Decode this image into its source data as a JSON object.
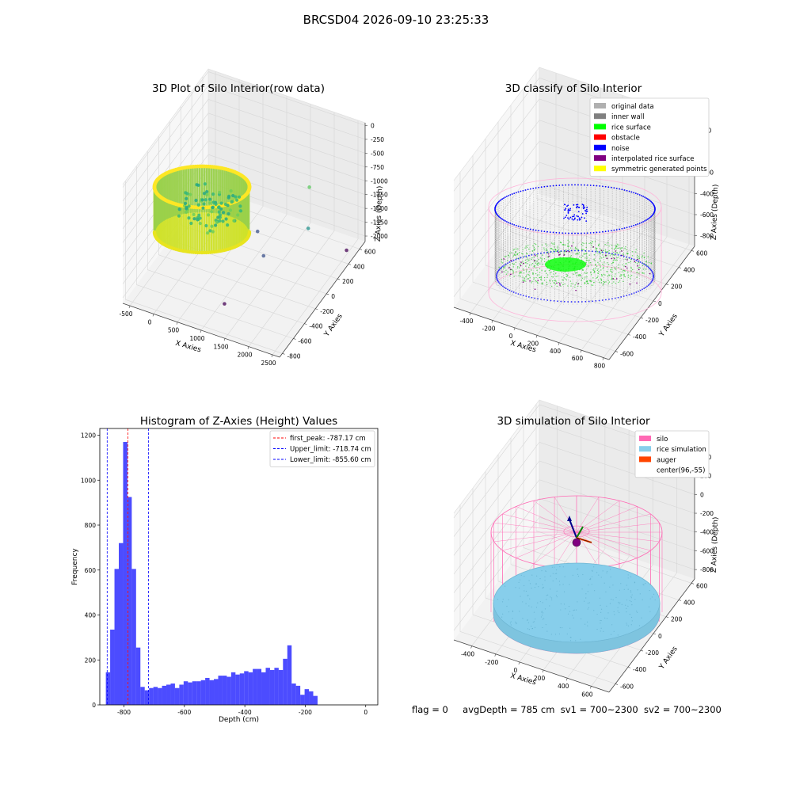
{
  "figure": {
    "suptitle": "BRCSD04 2026-09-10 23:25:33"
  },
  "status": {
    "flag": "flag = 0",
    "avg_depth": "avgDepth = 785 cm",
    "sv1": "sv1 = 700~2300",
    "sv2": "sv2 = 700~2300"
  },
  "chart_data": [
    {
      "type": "scatter",
      "title": "3D Plot of Silo Interior(row data)",
      "xlabel": "X Axies",
      "ylabel": "Y Axies",
      "zlabel": "Z Axies (Depth)",
      "x_ticks": [
        -500,
        0,
        500,
        1000,
        1500,
        2000,
        2500
      ],
      "y_ticks": [
        -800,
        -600,
        -400,
        -200,
        0,
        200,
        400,
        600
      ],
      "z_ticks": [
        -2000,
        -1750,
        -1500,
        -1250,
        -1000,
        -750,
        -500,
        -250,
        0
      ],
      "xlim": [
        -650,
        2650
      ],
      "ylim": [
        -850,
        700
      ],
      "zlim": [
        -2100,
        50
      ],
      "colormap": [
        "#440154",
        "#3b528b",
        "#21918c",
        "#5ec962",
        "#fde725"
      ],
      "outliers": [
        {
          "x": 2000,
          "y": 250,
          "z": -700
        },
        {
          "x": 2150,
          "y": 100,
          "z": -1200
        },
        {
          "x": 1200,
          "y": 0,
          "z": -1400
        },
        {
          "x": 1500,
          "y": -150,
          "z": -1550
        },
        {
          "x": 1200,
          "y": -600,
          "z": -1900
        },
        {
          "x": 2550,
          "y": 450,
          "z": -1950
        }
      ]
    },
    {
      "type": "scatter",
      "title": "3D classify of Silo Interior",
      "xlabel": "X Axies",
      "ylabel": "Y Axies",
      "zlabel": "Z Axies (Depth)",
      "x_ticks": [
        -400,
        -200,
        0,
        200,
        400,
        600,
        800
      ],
      "y_ticks": [
        -600,
        -400,
        -200,
        0,
        200,
        400,
        600
      ],
      "z_ticks": [
        -800,
        -600,
        -400,
        -200,
        0,
        200
      ],
      "xlim": [
        -550,
        850
      ],
      "ylim": [
        -700,
        650
      ],
      "zlim": [
        -900,
        300
      ],
      "legend": [
        {
          "label": "original data",
          "color": "#b0b0b0"
        },
        {
          "label": "inner wall",
          "color": "#808080"
        },
        {
          "label": "rice surface",
          "color": "#00ff00"
        },
        {
          "label": "obstacle",
          "color": "#ff0000"
        },
        {
          "label": "noise",
          "color": "#0000ff"
        },
        {
          "label": "interpolated rice surface",
          "color": "#800080"
        },
        {
          "label": "symmetric generated points",
          "color": "#ffff00"
        }
      ],
      "legend_position": "top-right"
    },
    {
      "type": "bar",
      "title": "Histogram of Z-Axies (Height) Values",
      "xlabel": "Depth (cm)",
      "ylabel": "Frequency",
      "xlim": [
        -880,
        40
      ],
      "ylim": [
        0,
        1230
      ],
      "x_ticks": [
        -800,
        -600,
        -400,
        -200,
        0
      ],
      "y_ticks": [
        0,
        200,
        400,
        600,
        800,
        1000,
        1200
      ],
      "bin_start": -860,
      "bin_width": 14.3,
      "values": [
        145,
        335,
        605,
        720,
        1170,
        925,
        605,
        255,
        80,
        65,
        75,
        80,
        75,
        85,
        90,
        95,
        75,
        90,
        105,
        100,
        105,
        105,
        110,
        120,
        110,
        115,
        130,
        130,
        125,
        145,
        135,
        140,
        150,
        145,
        160,
        160,
        145,
        165,
        155,
        165,
        155,
        205,
        265,
        95,
        85,
        45,
        70,
        60,
        40
      ],
      "bar_color": "#0000ff",
      "vlines": [
        {
          "x": -787.17,
          "color": "#ff0000"
        },
        {
          "x": -718.74,
          "color": "#0000ff"
        },
        {
          "x": -855.6,
          "color": "#0000ff"
        }
      ],
      "legend": [
        {
          "label": "first_peak: -787.17 cm",
          "color": "#ff0000"
        },
        {
          "label": "Upper_limit: -718.74 cm",
          "color": "#0000ff"
        },
        {
          "label": "Lower_limit: -855.60 cm",
          "color": "#0000ff"
        }
      ],
      "legend_position": "top-right"
    },
    {
      "type": "scatter",
      "title": "3D simulation of Silo Interior",
      "xlabel": "X Axies",
      "ylabel": "Y Axies",
      "zlabel": "Z Axies (Depth)",
      "x_ticks": [
        -400,
        -200,
        0,
        200,
        400,
        600
      ],
      "y_ticks": [
        -600,
        -400,
        -200,
        0,
        200,
        400,
        600
      ],
      "z_ticks": [
        -800,
        -600,
        -400,
        -200,
        0,
        200,
        400
      ],
      "xlim": [
        -550,
        750
      ],
      "ylim": [
        -700,
        650
      ],
      "zlim": [
        -900,
        450
      ],
      "legend": [
        {
          "label": "silo",
          "color": "#ff69b4"
        },
        {
          "label": "rice simulation",
          "color": "#87ceeb"
        },
        {
          "label": "auger",
          "color": "#ff4500"
        },
        {
          "label": "center(96,-55)",
          "color": ""
        }
      ],
      "legend_position": "top-right"
    }
  ]
}
